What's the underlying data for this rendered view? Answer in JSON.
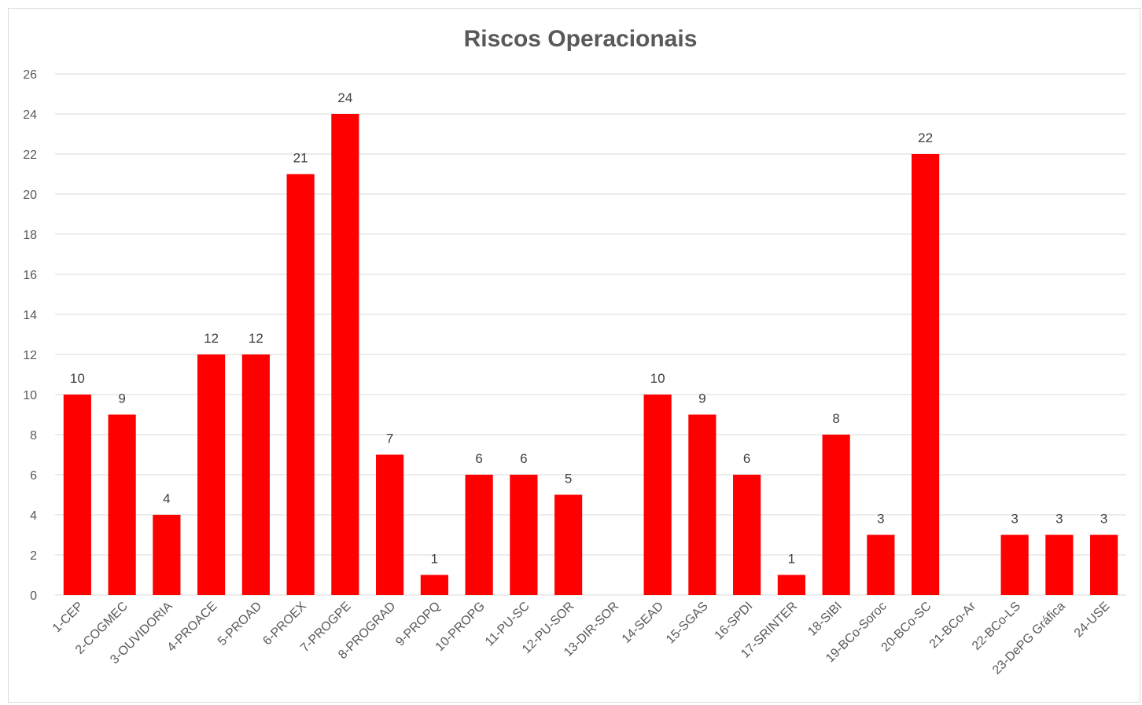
{
  "chart_data": {
    "type": "bar",
    "title": "Riscos Operacionais",
    "xlabel": "",
    "ylabel": "",
    "ylim": [
      0,
      26
    ],
    "yticks": [
      0,
      2,
      4,
      6,
      8,
      10,
      12,
      14,
      16,
      18,
      20,
      22,
      24,
      26
    ],
    "grid": true,
    "legend": "none",
    "bar_color": "#ff0000",
    "categories": [
      "1-CEP",
      "2-COGMEC",
      "3-OUVIDORIA",
      "4-PROACE",
      "5-PROAD",
      "6-PROEX",
      "7-PROGPE",
      "8-PROGRAD",
      "9-PROPQ",
      "10-PROPG",
      "11-PU-SC",
      "12-PU-SOR",
      "13-DIR-SOR",
      "14-SEAD",
      "15-SGAS",
      "16-SPDI",
      "17-SRINTER",
      "18-SIBI",
      "19-BCo-Soroc",
      "20-BCo-SC",
      "21-BCo-Ar",
      "22-BCo-LS",
      "23-DePG Gráfica",
      "24-USE"
    ],
    "values": [
      10,
      9,
      4,
      12,
      12,
      21,
      24,
      7,
      1,
      6,
      6,
      5,
      null,
      10,
      9,
      6,
      1,
      8,
      3,
      22,
      null,
      3,
      3,
      3
    ]
  }
}
